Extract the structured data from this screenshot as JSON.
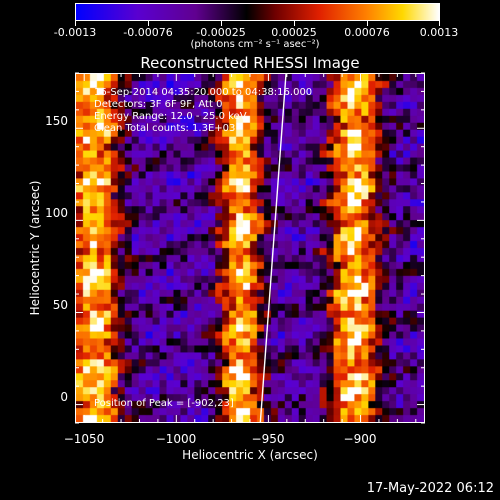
{
  "plot_title": "Reconstructed RHESSI Image",
  "colorbar": {
    "units_text": "(photons cm⁻² s⁻¹ asec⁻²)",
    "tick_labels": [
      "-0.0013",
      "-0.00076",
      "-0.00025",
      "0.00025",
      "0.00076",
      "0.0013"
    ],
    "range": [
      -0.0013,
      0.0013
    ],
    "colors": [
      "#0000ff",
      "#7a00b0",
      "#000000",
      "#b00000",
      "#ff6a00",
      "#ffd000",
      "#ffffff"
    ]
  },
  "info_lines": {
    "time_range": "16-Sep-2014 04:35:20.000 to 04:38:16.000",
    "detectors": "Detectors: 3F 6F 9F, Att 0",
    "energy": "Energy Range: 12.0 - 25.0 keV",
    "algorithm": "Clean     Total counts: 1.3E+03",
    "peak": "Position of Peak = [-902,23]"
  },
  "timestamp": "17-May-2022 06:12",
  "chart_data": {
    "type": "heatmap",
    "title": "Reconstructed RHESSI Image",
    "xlabel": "Heliocentric X (arcsec)",
    "ylabel": "Heliocentric Y (arcsec)",
    "xlim": [
      -1055,
      -865
    ],
    "ylim": [
      -10,
      180
    ],
    "x_ticks": [
      -1050,
      -1000,
      -950,
      -900
    ],
    "y_ticks": [
      0,
      50,
      100,
      150
    ],
    "x_tick_labels": [
      "−1050",
      "−1000",
      "−950",
      "−900"
    ],
    "y_tick_labels": [
      "0",
      "50",
      "100",
      "150"
    ],
    "peak_position": [
      -902,
      23
    ],
    "bright_band_centers_x": [
      -1045,
      -965,
      -903
    ],
    "limb_line": [
      [
        -955,
        -10
      ],
      [
        -941,
        180
      ]
    ],
    "colorbar_range": [
      -0.0013,
      0.0013
    ]
  }
}
